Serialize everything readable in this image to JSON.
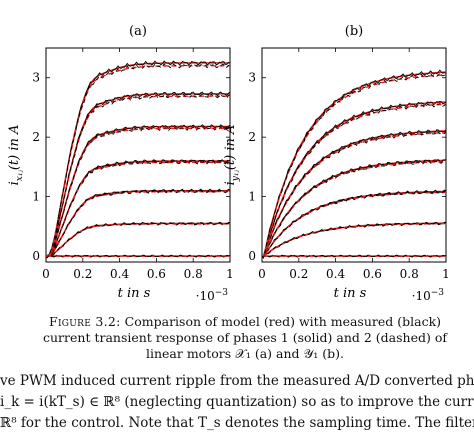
{
  "chart_data": [
    {
      "type": "line",
      "title": "(a)",
      "ylabel": "i_{x_{1j}}(t) in A",
      "xlabel": "t in s",
      "x_multiplier": "·10^-3",
      "xlim": [
        0,
        0.001
      ],
      "ylim": [
        -0.1,
        3.5
      ],
      "xticks": [
        "0",
        "0.2",
        "0.4",
        "0.6",
        "0.8",
        "1"
      ],
      "yticks": [
        "0",
        "1",
        "2",
        "3"
      ],
      "series_colors": {
        "model": "#e0201b",
        "measured": "#000000"
      },
      "steady_state_levels": [
        0.0,
        0.55,
        1.1,
        1.6,
        2.18,
        2.73,
        3.25
      ],
      "overshoot_peak": 3.33,
      "time_constant_ms": 0.07,
      "phases": [
        "phase 1 (solid)",
        "phase 2 (dashed)"
      ]
    },
    {
      "type": "line",
      "title": "(b)",
      "ylabel": "i_{y_{1j}}(t) in A",
      "xlabel": "t in s",
      "x_multiplier": "·10^-3",
      "xlim": [
        0,
        0.001
      ],
      "ylim": [
        -0.1,
        3.5
      ],
      "xticks": [
        "0",
        "0.2",
        "0.4",
        "0.6",
        "0.8",
        "1"
      ],
      "yticks": [
        "0",
        "1",
        "2",
        "3"
      ],
      "series_colors": {
        "model": "#e0201b",
        "measured": "#000000"
      },
      "steady_state_levels": [
        0.0,
        0.56,
        1.1,
        1.63,
        2.13,
        2.62,
        3.13
      ],
      "time_constant_ms": 0.22,
      "phases": [
        "phase 1 (solid)",
        "phase 2 (dashed)"
      ]
    }
  ],
  "caption": {
    "label": "Figure 3.2:",
    "text": "Comparison of model (red) with measured (black) current transient response of phases 1 (solid) and 2 (dashed) of linear motors 𝒳₁ (a) and 𝒴₁ (b)."
  },
  "body": {
    "line1": "ve PWM induced current ripple from the measured A/D converted phase cu",
    "line2": "i_k = i(kT_s) ∈ ℝ⁸ (neglecting quantization) so as to improve the current signa",
    "line3": "ℝ⁸ for the control. Note that T_s denotes the sampling time. The filter and co"
  }
}
